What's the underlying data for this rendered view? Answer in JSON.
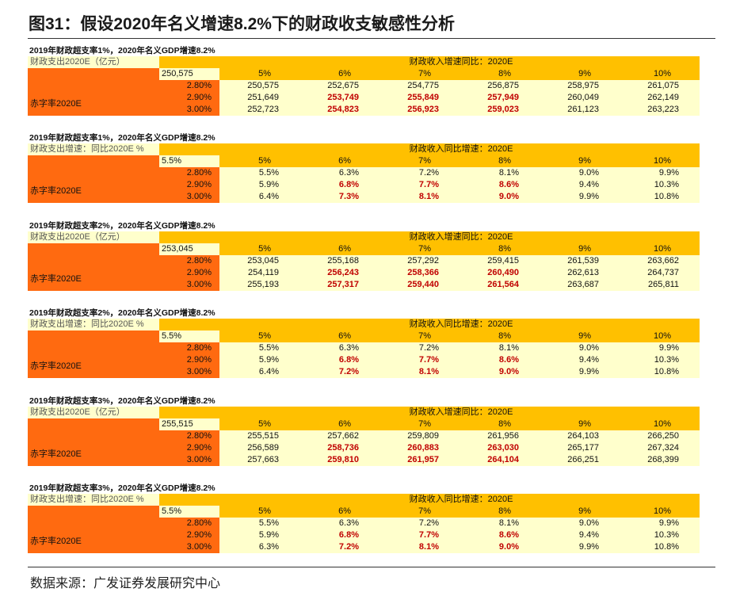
{
  "title": "图31：假设2020年名义增速8.2%下的财政收支敏感性分析",
  "tables": [
    {
      "caption": "2019年财政超支率1%，2020年名义GDP增速8.2%",
      "header_left": "财政支出2020E（亿元）",
      "header_span": "财政收入增速同比：2020E",
      "corner": "250,575",
      "columns": [
        "5%",
        "6%",
        "7%",
        "8%",
        "9%",
        "10%"
      ],
      "row_group": "赤字率2020E",
      "rows": [
        {
          "rate": "2.80%",
          "values": [
            "250,575",
            "252,675",
            "254,775",
            "256,875",
            "258,975",
            "261,075"
          ]
        },
        {
          "rate": "2.90%",
          "values": [
            "251,649",
            "253,749",
            "255,849",
            "257,949",
            "260,049",
            "262,149"
          ]
        },
        {
          "rate": "3.00%",
          "values": [
            "252,723",
            "254,823",
            "256,923",
            "259,023",
            "261,123",
            "263,223"
          ]
        }
      ]
    },
    {
      "caption": "2019年财政超支率1%，2020年名义GDP增速8.2%",
      "header_left": "财政支出增速：同比2020E %",
      "header_span": "财政收入同比增速：2020E",
      "corner": "5.5%",
      "columns": [
        "5%",
        "6%",
        "7%",
        "8%",
        "9%",
        "10%"
      ],
      "row_group": "赤字率2020E",
      "rows": [
        {
          "rate": "2.80%",
          "values": [
            "5.5%",
            "6.3%",
            "7.2%",
            "8.1%",
            "9.0%",
            "9.9%"
          ]
        },
        {
          "rate": "2.90%",
          "values": [
            "5.9%",
            "6.8%",
            "7.7%",
            "8.6%",
            "9.4%",
            "10.3%"
          ]
        },
        {
          "rate": "3.00%",
          "values": [
            "6.4%",
            "7.3%",
            "8.1%",
            "9.0%",
            "9.9%",
            "10.8%"
          ]
        }
      ]
    },
    {
      "caption": "2019年财政超支率2%，2020年名义GDP增速8.2%",
      "header_left": "财政支出2020E（亿元）",
      "header_span": "财政收入增速同比：2020E",
      "corner": "253,045",
      "columns": [
        "5%",
        "6%",
        "7%",
        "8%",
        "9%",
        "10%"
      ],
      "row_group": "赤字率2020E",
      "rows": [
        {
          "rate": "2.80%",
          "values": [
            "253,045",
            "255,168",
            "257,292",
            "259,415",
            "261,539",
            "263,662"
          ]
        },
        {
          "rate": "2.90%",
          "values": [
            "254,119",
            "256,243",
            "258,366",
            "260,490",
            "262,613",
            "264,737"
          ]
        },
        {
          "rate": "3.00%",
          "values": [
            "255,193",
            "257,317",
            "259,440",
            "261,564",
            "263,687",
            "265,811"
          ]
        }
      ]
    },
    {
      "caption": "2019年财政超支率2%，2020年名义GDP增速8.2%",
      "header_left": "财政支出增速：同比2020E %",
      "header_span": "财政收入同比增速：2020E",
      "corner": "5.5%",
      "columns": [
        "5%",
        "6%",
        "7%",
        "8%",
        "9%",
        "10%"
      ],
      "row_group": "赤字率2020E",
      "rows": [
        {
          "rate": "2.80%",
          "values": [
            "5.5%",
            "6.3%",
            "7.2%",
            "8.1%",
            "9.0%",
            "9.9%"
          ]
        },
        {
          "rate": "2.90%",
          "values": [
            "5.9%",
            "6.8%",
            "7.7%",
            "8.6%",
            "9.4%",
            "10.3%"
          ]
        },
        {
          "rate": "3.00%",
          "values": [
            "6.4%",
            "7.2%",
            "8.1%",
            "9.0%",
            "9.9%",
            "10.8%"
          ]
        }
      ]
    },
    {
      "caption": "2019年财政超支率3%，2020年名义GDP增速8.2%",
      "header_left": "财政支出2020E（亿元）",
      "header_span": "财政收入增速同比：2020E",
      "corner": "255,515",
      "columns": [
        "5%",
        "6%",
        "7%",
        "8%",
        "9%",
        "10%"
      ],
      "row_group": "赤字率2020E",
      "rows": [
        {
          "rate": "2.80%",
          "values": [
            "255,515",
            "257,662",
            "259,809",
            "261,956",
            "264,103",
            "266,250"
          ]
        },
        {
          "rate": "2.90%",
          "values": [
            "256,589",
            "258,736",
            "260,883",
            "263,030",
            "265,177",
            "267,324"
          ]
        },
        {
          "rate": "3.00%",
          "values": [
            "257,663",
            "259,810",
            "261,957",
            "264,104",
            "266,251",
            "268,399"
          ]
        }
      ]
    },
    {
      "caption": "2019年财政超支率3%，2020年名义GDP增速8.2%",
      "header_left": "财政支出增速：同比2020E %",
      "header_span": "财政收入同比增速：2020E",
      "corner": "5.5%",
      "columns": [
        "5%",
        "6%",
        "7%",
        "8%",
        "9%",
        "10%"
      ],
      "row_group": "赤字率2020E",
      "rows": [
        {
          "rate": "2.80%",
          "values": [
            "5.5%",
            "6.3%",
            "7.2%",
            "8.1%",
            "9.0%",
            "9.9%"
          ]
        },
        {
          "rate": "2.90%",
          "values": [
            "5.9%",
            "6.8%",
            "7.7%",
            "8.6%",
            "9.4%",
            "10.3%"
          ]
        },
        {
          "rate": "3.00%",
          "values": [
            "6.3%",
            "7.2%",
            "8.1%",
            "9.0%",
            "9.9%",
            "10.8%"
          ]
        }
      ]
    }
  ],
  "source": "数据来源：广发证券发展研究中心"
}
